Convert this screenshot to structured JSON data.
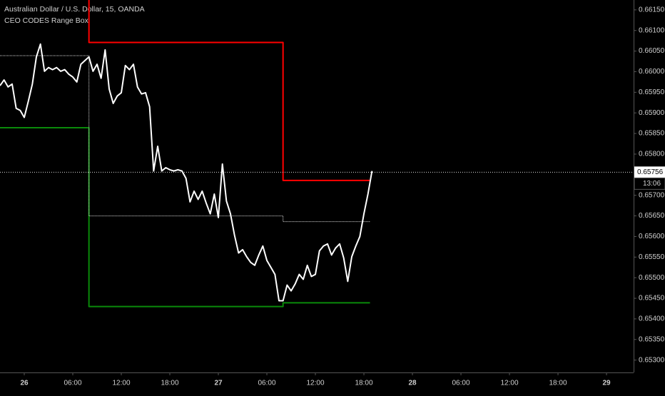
{
  "chart_data": {
    "type": "line",
    "title": "Australian Dollar / U.S. Dollar, 15, OANDA",
    "subtitle": "CEO CODES Range Box",
    "xlim": [
      -3,
      75.35
    ],
    "ylim": [
      0.6527,
      0.66174
    ],
    "xticks": [
      {
        "value": 0,
        "label": "26"
      },
      {
        "value": 6,
        "label": "06:00"
      },
      {
        "value": 12,
        "label": "12:00"
      },
      {
        "value": 18,
        "label": "18:00"
      },
      {
        "value": 24,
        "label": "27"
      },
      {
        "value": 30,
        "label": "06:00"
      },
      {
        "value": 36,
        "label": "12:00"
      },
      {
        "value": 42,
        "label": "18:00"
      },
      {
        "value": 48,
        "label": "28"
      },
      {
        "value": 54,
        "label": "06:00"
      },
      {
        "value": 60,
        "label": "12:00"
      },
      {
        "value": 66,
        "label": "18:00"
      },
      {
        "value": 72,
        "label": "29"
      }
    ],
    "yticks": [
      {
        "value": 0.653,
        "label": "0.65300"
      },
      {
        "value": 0.6535,
        "label": "0.65350"
      },
      {
        "value": 0.654,
        "label": "0.65400"
      },
      {
        "value": 0.6545,
        "label": "0.65450"
      },
      {
        "value": 0.655,
        "label": "0.65500"
      },
      {
        "value": 0.6555,
        "label": "0.65550"
      },
      {
        "value": 0.656,
        "label": "0.65600"
      },
      {
        "value": 0.6565,
        "label": "0.65650"
      },
      {
        "value": 0.657,
        "label": "0.65700"
      },
      {
        "value": 0.6575,
        "label": "0.65750"
      },
      {
        "value": 0.658,
        "label": "0.65800"
      },
      {
        "value": 0.6585,
        "label": "0.65850"
      },
      {
        "value": 0.659,
        "label": "0.65900"
      },
      {
        "value": 0.6595,
        "label": "0.65950"
      },
      {
        "value": 0.66,
        "label": "0.66000"
      },
      {
        "value": 0.6605,
        "label": "0.66050"
      },
      {
        "value": 0.661,
        "label": "0.66100"
      },
      {
        "value": 0.6615,
        "label": "0.66150"
      }
    ],
    "last_price": 0.65756,
    "countdown": "13:06",
    "series": [
      {
        "color": "#ff0000",
        "style": "solid",
        "x": [
          8,
          8,
          32,
          32,
          42.75
        ],
        "values": [
          0.662,
          0.66071,
          0.66071,
          0.65736,
          0.65736
        ]
      },
      {
        "color": "#0a8a0a",
        "style": "solid",
        "x": [
          -3,
          8,
          8,
          32,
          32,
          42.75
        ],
        "values": [
          0.65864,
          0.65864,
          0.6543,
          0.6543,
          0.65439,
          0.65439
        ]
      },
      {
        "color": "#dddddd",
        "style": "dotted",
        "x": [
          -3,
          8,
          8,
          32,
          32,
          42.75
        ],
        "values": [
          0.66039,
          0.66039,
          0.6565,
          0.6565,
          0.65636,
          0.65636
        ]
      },
      {
        "color": "#ffffff",
        "style": "solid",
        "x": [
          -3,
          -2.5,
          -2,
          -1.5,
          -1,
          -0.5,
          0,
          0.5,
          1,
          1.5,
          2,
          2.5,
          3,
          3.5,
          4,
          4.5,
          5,
          5.5,
          6,
          6.5,
          7,
          7.5,
          8,
          8.5,
          9,
          9.5,
          10,
          10.5,
          11,
          11.5,
          12,
          12.5,
          13,
          13.5,
          14,
          14.5,
          15,
          15.5,
          16,
          16.5,
          17,
          17.5,
          18,
          18.5,
          19,
          19.5,
          20,
          20.5,
          21,
          21.5,
          22,
          22.5,
          23,
          23.5,
          24,
          24.5,
          25,
          25.5,
          26,
          26.5,
          27,
          27.5,
          28,
          28.5,
          29,
          29.5,
          30,
          30.5,
          31,
          31.5,
          32,
          32.5,
          33,
          33.5,
          34,
          34.5,
          35,
          35.5,
          36,
          36.5,
          37,
          37.5,
          38,
          38.5,
          39,
          39.5,
          40,
          40.5,
          41,
          41.5,
          42,
          42.5,
          43
        ],
        "values": [
          0.65966,
          0.6598,
          0.65963,
          0.6597,
          0.65911,
          0.65906,
          0.65889,
          0.65928,
          0.6597,
          0.66036,
          0.66067,
          0.66001,
          0.6601,
          0.66005,
          0.6601,
          0.66001,
          0.66005,
          0.65994,
          0.65987,
          0.65975,
          0.66018,
          0.66027,
          0.66036,
          0.66001,
          0.66018,
          0.65984,
          0.66053,
          0.65958,
          0.65923,
          0.65941,
          0.65949,
          0.66015,
          0.66005,
          0.66018,
          0.65963,
          0.65946,
          0.65949,
          0.65915,
          0.65759,
          0.65819,
          0.65759,
          0.65767,
          0.65762,
          0.65759,
          0.65762,
          0.65759,
          0.65741,
          0.65684,
          0.6571,
          0.6569,
          0.6571,
          0.65681,
          0.65655,
          0.65703,
          0.65646,
          0.65776,
          0.65686,
          0.65655,
          0.65603,
          0.6556,
          0.65568,
          0.65551,
          0.65537,
          0.6553,
          0.65555,
          0.65577,
          0.65542,
          0.65525,
          0.65508,
          0.65444,
          0.65444,
          0.65482,
          0.65468,
          0.65485,
          0.65508,
          0.65496,
          0.6553,
          0.65503,
          0.65508,
          0.65565,
          0.65577,
          0.65582,
          0.65555,
          0.65572,
          0.65582,
          0.65548,
          0.65491,
          0.65551,
          0.65577,
          0.656,
          0.65655,
          0.65703,
          0.65759
        ]
      }
    ]
  }
}
